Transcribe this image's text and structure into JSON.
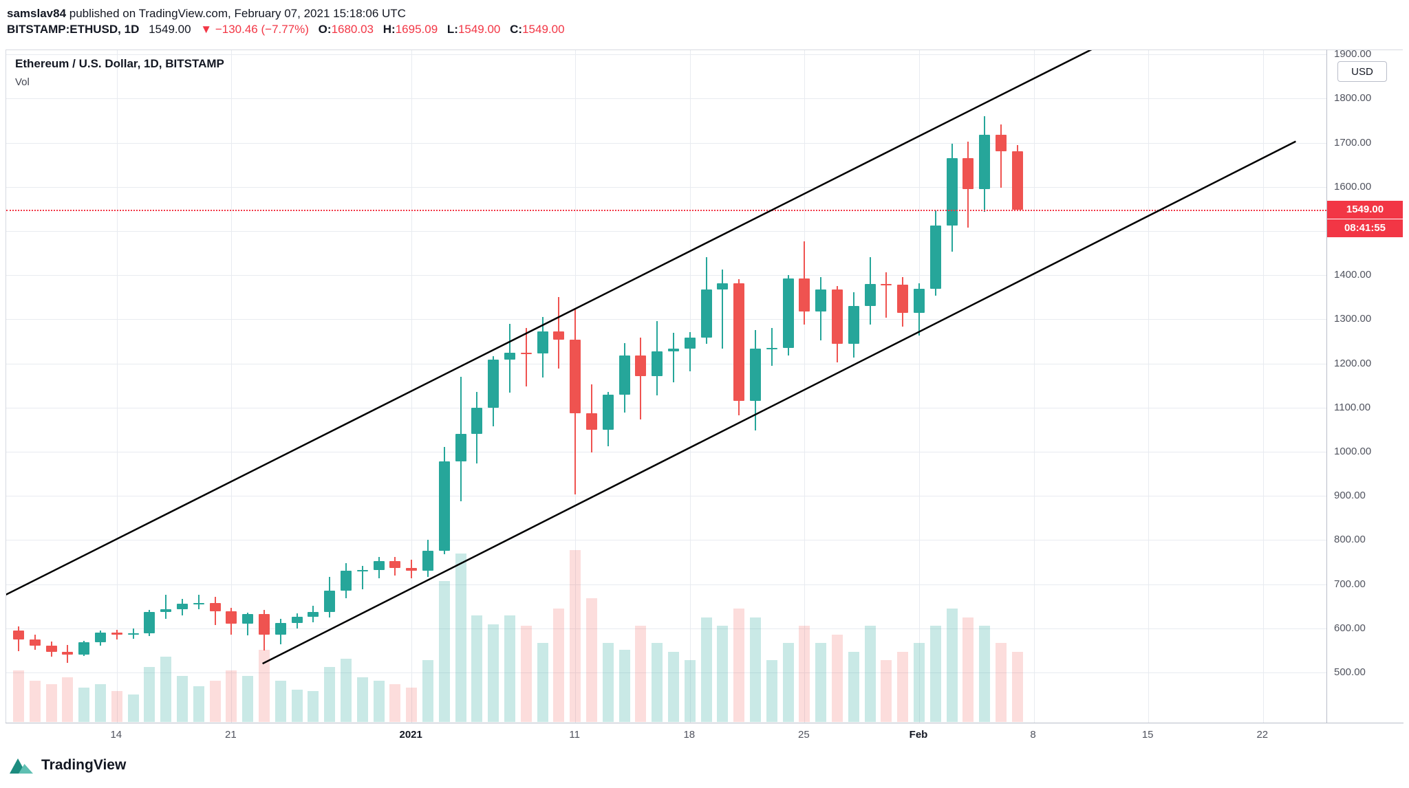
{
  "header": {
    "author": "samslav84",
    "published_text": " published on TradingView.com, February 07, 2021 15:18:06 UTC",
    "symbol": "BITSTAMP:ETHUSD, 1D",
    "last_price": "1549.00",
    "change": "▼ −130.46 (−7.77%)",
    "ohlc": {
      "o_label": "O:",
      "o": "1680.03",
      "h_label": "H:",
      "h": "1695.09",
      "l_label": "L:",
      "l": "1549.00",
      "c_label": "C:",
      "c": "1549.00"
    }
  },
  "legend": {
    "title": "Ethereum / U.S. Dollar, 1D, BITSTAMP",
    "vol": "Vol"
  },
  "axis": {
    "currency_label": "USD"
  },
  "price_line": {
    "price": 1549,
    "label": "1549.00",
    "countdown": "08:41:55"
  },
  "footer": {
    "brand": "TradingView"
  },
  "colors": {
    "up": "#26a69a",
    "down": "#ef5350",
    "vol_up": "rgba(38,166,154,0.25)",
    "vol_down": "rgba(239,83,80,0.20)",
    "trendline": "#000000",
    "grid": "#e8ebf0",
    "tag_bg": "#f23645",
    "red_text": "#f23645",
    "axis_text": "#50535e"
  },
  "chart_data": {
    "type": "candlestick",
    "title": "Ethereum / U.S. Dollar, 1D, BITSTAMP",
    "symbol": "BITSTAMP:ETHUSD",
    "interval": "1D",
    "price_axis": {
      "min": 500,
      "max": 1900,
      "step": 100,
      "side": "right"
    },
    "time_ticks": [
      {
        "d": 6,
        "label": "14",
        "major": false
      },
      {
        "d": 13,
        "label": "21",
        "major": false
      },
      {
        "d": 24,
        "label": "2021",
        "major": true
      },
      {
        "d": 34,
        "label": "11",
        "major": false
      },
      {
        "d": 41,
        "label": "18",
        "major": false
      },
      {
        "d": 48,
        "label": "25",
        "major": false
      },
      {
        "d": 55,
        "label": "Feb",
        "major": true
      },
      {
        "d": 62,
        "label": "8",
        "major": false
      },
      {
        "d": 69,
        "label": "15",
        "major": false
      },
      {
        "d": 76,
        "label": "22",
        "major": false
      }
    ],
    "candles_fields": [
      "date",
      "open",
      "high",
      "low",
      "close",
      "volume_rel"
    ],
    "candles": [
      [
        "2020-12-08",
        595,
        604,
        549,
        575,
        30
      ],
      [
        "2020-12-09",
        575,
        586,
        551,
        561,
        24
      ],
      [
        "2020-12-10",
        561,
        570,
        536,
        546,
        22
      ],
      [
        "2020-12-11",
        546,
        562,
        522,
        540,
        26
      ],
      [
        "2020-12-12",
        540,
        572,
        537,
        568,
        20
      ],
      [
        "2020-12-13",
        568,
        595,
        560,
        590,
        22
      ],
      [
        "2020-12-14",
        590,
        596,
        574,
        586,
        18
      ],
      [
        "2020-12-15",
        586,
        599,
        577,
        589,
        16
      ],
      [
        "2020-12-16",
        589,
        641,
        582,
        637,
        32
      ],
      [
        "2020-12-17",
        637,
        676,
        622,
        643,
        38
      ],
      [
        "2020-12-18",
        643,
        666,
        629,
        655,
        27
      ],
      [
        "2020-12-19",
        655,
        676,
        644,
        658,
        21
      ],
      [
        "2020-12-20",
        658,
        671,
        608,
        638,
        24
      ],
      [
        "2020-12-21",
        638,
        646,
        586,
        610,
        30
      ],
      [
        "2020-12-22",
        610,
        636,
        584,
        632,
        27
      ],
      [
        "2020-12-23",
        632,
        641,
        550,
        585,
        42
      ],
      [
        "2020-12-24",
        585,
        621,
        564,
        612,
        24
      ],
      [
        "2020-12-25",
        612,
        634,
        599,
        626,
        19
      ],
      [
        "2020-12-26",
        626,
        651,
        614,
        637,
        18
      ],
      [
        "2020-12-27",
        637,
        717,
        624,
        685,
        32
      ],
      [
        "2020-12-28",
        685,
        748,
        668,
        730,
        37
      ],
      [
        "2020-12-29",
        730,
        741,
        688,
        732,
        26
      ],
      [
        "2020-12-30",
        732,
        761,
        714,
        752,
        24
      ],
      [
        "2020-12-31",
        752,
        761,
        719,
        737,
        22
      ],
      [
        "2021-01-01",
        737,
        756,
        714,
        730,
        20
      ],
      [
        "2021-01-02",
        730,
        801,
        716,
        775,
        36
      ],
      [
        "2021-01-03",
        775,
        1011,
        768,
        978,
        82
      ],
      [
        "2021-01-04",
        978,
        1170,
        888,
        1041,
        98
      ],
      [
        "2021-01-05",
        1041,
        1136,
        974,
        1100,
        62
      ],
      [
        "2021-01-06",
        1100,
        1216,
        1058,
        1208,
        57
      ],
      [
        "2021-01-07",
        1208,
        1290,
        1134,
        1225,
        62
      ],
      [
        "2021-01-08",
        1225,
        1281,
        1148,
        1222,
        56
      ],
      [
        "2021-01-09",
        1222,
        1306,
        1168,
        1273,
        46
      ],
      [
        "2021-01-10",
        1273,
        1351,
        1188,
        1254,
        66
      ],
      [
        "2021-01-11",
        1254,
        1322,
        903,
        1087,
        100
      ],
      [
        "2021-01-12",
        1087,
        1152,
        998,
        1050,
        72
      ],
      [
        "2021-01-13",
        1050,
        1136,
        1012,
        1130,
        46
      ],
      [
        "2021-01-14",
        1130,
        1246,
        1088,
        1218,
        42
      ],
      [
        "2021-01-15",
        1218,
        1259,
        1073,
        1171,
        56
      ],
      [
        "2021-01-16",
        1171,
        1296,
        1128,
        1227,
        46
      ],
      [
        "2021-01-17",
        1227,
        1269,
        1158,
        1233,
        41
      ],
      [
        "2021-01-18",
        1233,
        1271,
        1183,
        1259,
        36
      ],
      [
        "2021-01-19",
        1259,
        1441,
        1244,
        1367,
        61
      ],
      [
        "2021-01-20",
        1367,
        1412,
        1233,
        1382,
        56
      ],
      [
        "2021-01-21",
        1382,
        1391,
        1083,
        1115,
        66
      ],
      [
        "2021-01-22",
        1115,
        1276,
        1048,
        1233,
        61
      ],
      [
        "2021-01-23",
        1233,
        1281,
        1194,
        1235,
        36
      ],
      [
        "2021-01-24",
        1235,
        1401,
        1218,
        1392,
        46
      ],
      [
        "2021-01-25",
        1392,
        1476,
        1288,
        1318,
        56
      ],
      [
        "2021-01-26",
        1318,
        1396,
        1253,
        1367,
        46
      ],
      [
        "2021-01-27",
        1367,
        1376,
        1203,
        1245,
        51
      ],
      [
        "2021-01-28",
        1245,
        1361,
        1214,
        1330,
        41
      ],
      [
        "2021-01-29",
        1330,
        1441,
        1288,
        1380,
        56
      ],
      [
        "2021-01-30",
        1380,
        1407,
        1303,
        1378,
        36
      ],
      [
        "2021-01-31",
        1378,
        1396,
        1283,
        1314,
        41
      ],
      [
        "2021-02-01",
        1314,
        1381,
        1263,
        1369,
        46
      ],
      [
        "2021-02-02",
        1369,
        1546,
        1353,
        1512,
        56
      ],
      [
        "2021-02-03",
        1512,
        1698,
        1453,
        1665,
        66
      ],
      [
        "2021-02-04",
        1665,
        1702,
        1508,
        1595,
        61
      ],
      [
        "2021-02-05",
        1595,
        1760,
        1543,
        1718,
        56
      ],
      [
        "2021-02-06",
        1718,
        1741,
        1598,
        1680,
        46
      ],
      [
        "2021-02-07",
        1680.03,
        1695.09,
        1549.0,
        1549.0,
        41
      ]
    ],
    "trendlines": [
      {
        "d1": -1,
        "p1": 672,
        "d2": 66,
        "p2": 1920
      },
      {
        "d1": 14.9,
        "p1": 520,
        "d2": 78,
        "p2": 1703
      }
    ]
  }
}
